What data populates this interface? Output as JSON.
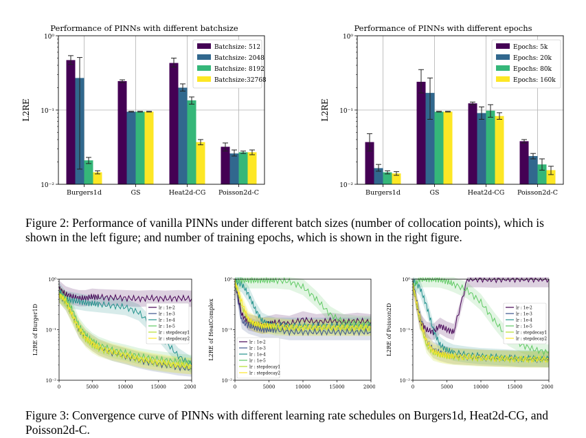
{
  "figure2": {
    "caption": "Figure 2: Performance of vanilla PINNs under different batch sizes (number of collocation points), which is shown in the left figure; and number of training epochs, which is shown in the right figure.",
    "left_chart": "batchsize",
    "right_chart": "epochs"
  },
  "figure3": {
    "caption": "Figure 3: Convergence curve of PINNs with different learning rate schedules on Burgers1d, Heat2d-CG, and Poisson2d-C."
  },
  "chart_data": [
    {
      "id": "batchsize",
      "type": "bar",
      "title": "Performance of PINNs with different batchsize",
      "xlabel": "",
      "ylabel": "L2RE",
      "yscale": "log",
      "ylim": [
        0.01,
        1
      ],
      "yticks": [
        "10⁰",
        "10⁻¹",
        "10⁻²"
      ],
      "legend_position": "top-right",
      "categories": [
        "Burgers1d",
        "GS",
        "Heat2d-CG",
        "Poisson2d-C"
      ],
      "series": [
        {
          "name": "Batchsize: 512",
          "color": "#440154",
          "values": [
            0.47,
            0.245,
            0.43,
            0.032
          ],
          "err": [
            [
              0.41,
              0.54
            ],
            [
              0.235,
              0.255
            ],
            [
              0.38,
              0.5
            ],
            [
              0.028,
              0.036
            ]
          ]
        },
        {
          "name": "Batchsize: 2048",
          "color": "#31688e",
          "values": [
            0.27,
            0.095,
            0.2,
            0.026
          ],
          "err": [
            [
              0.016,
              0.51
            ],
            [
              0.094,
              0.096
            ],
            [
              0.18,
              0.225
            ],
            [
              0.024,
              0.029
            ]
          ]
        },
        {
          "name": "Batchsize: 8192",
          "color": "#35b779",
          "values": [
            0.021,
            0.095,
            0.135,
            0.027
          ],
          "err": [
            [
              0.019,
              0.023
            ],
            [
              0.094,
              0.096
            ],
            [
              0.12,
              0.15
            ],
            [
              0.026,
              0.028
            ]
          ]
        },
        {
          "name": "Batchsize:32768",
          "color": "#fde725",
          "values": [
            0.0145,
            0.095,
            0.037,
            0.027
          ],
          "err": [
            [
              0.0138,
              0.0152
            ],
            [
              0.094,
              0.096
            ],
            [
              0.034,
              0.04
            ],
            [
              0.025,
              0.029
            ]
          ]
        }
      ]
    },
    {
      "id": "epochs",
      "type": "bar",
      "title": "Performance of PINNs with different epochs",
      "xlabel": "",
      "ylabel": "L2RE",
      "yscale": "log",
      "ylim": [
        0.01,
        1
      ],
      "yticks": [
        "10⁰",
        "10⁻¹",
        "10⁻²"
      ],
      "legend_position": "top-right",
      "categories": [
        "Burgers1d",
        "GS",
        "Heat2d-CG",
        "Poisson2d-C"
      ],
      "series": [
        {
          "name": "Epochs: 5k",
          "color": "#440154",
          "values": [
            0.037,
            0.24,
            0.123,
            0.038
          ],
          "err": [
            [
              0.028,
              0.048
            ],
            [
              0.17,
              0.35
            ],
            [
              0.118,
              0.128
            ],
            [
              0.036,
              0.04
            ]
          ]
        },
        {
          "name": "Epochs: 20k",
          "color": "#31688e",
          "values": [
            0.0165,
            0.17,
            0.091,
            0.024
          ],
          "err": [
            [
              0.015,
              0.0185
            ],
            [
              0.075,
              0.27
            ],
            [
              0.075,
              0.11
            ],
            [
              0.022,
              0.026
            ]
          ]
        },
        {
          "name": "Epochs: 80k",
          "color": "#35b779",
          "values": [
            0.0145,
            0.095,
            0.098,
            0.0185
          ],
          "err": [
            [
              0.0138,
              0.0152
            ],
            [
              0.094,
              0.096
            ],
            [
              0.08,
              0.118
            ],
            [
              0.0155,
              0.022
            ]
          ]
        },
        {
          "name": "Epochs: 160k",
          "color": "#fde725",
          "values": [
            0.014,
            0.095,
            0.083,
            0.0155
          ],
          "err": [
            [
              0.0132,
              0.0148
            ],
            [
              0.094,
              0.096
            ],
            [
              0.075,
              0.092
            ],
            [
              0.0135,
              0.0175
            ]
          ]
        }
      ]
    },
    {
      "id": "burgers",
      "type": "line",
      "title": "",
      "xlabel": "",
      "ylabel": "L2RE of Burger1D",
      "yscale": "log",
      "ylim": [
        0.01,
        1
      ],
      "xlim": [
        0,
        20000
      ],
      "xticks": [
        0,
        5000,
        10000,
        15000,
        20000
      ],
      "yticks": [
        "10⁰",
        "10⁻¹",
        "10⁻²"
      ],
      "legend_position": "center-right",
      "x": [
        0,
        1000,
        2000,
        3000,
        4000,
        5000,
        6000,
        8000,
        10000,
        12000,
        14000,
        16000,
        18000,
        20000
      ],
      "series": [
        {
          "name": "lr : 1e-2",
          "color": "#440154",
          "values": [
            0.65,
            0.5,
            0.45,
            0.42,
            0.42,
            0.45,
            0.44,
            0.43,
            0.42,
            0.41,
            0.42,
            0.41,
            0.42,
            0.41
          ]
        },
        {
          "name": "lr : 1e-3",
          "color": "#3b528b",
          "values": [
            0.5,
            0.35,
            0.2,
            0.1,
            0.07,
            0.055,
            0.045,
            0.035,
            0.03,
            0.025,
            0.022,
            0.02,
            0.018,
            0.017
          ]
        },
        {
          "name": "lr : 1e-4",
          "color": "#21918c",
          "values": [
            0.6,
            0.4,
            0.38,
            0.36,
            0.34,
            0.33,
            0.32,
            0.3,
            0.28,
            0.22,
            0.12,
            0.06,
            0.03,
            0.02
          ]
        },
        {
          "name": "lr : 1e-5",
          "color": "#5ec962",
          "values": [
            0.5,
            0.4,
            0.25,
            0.12,
            0.08,
            0.06,
            0.05,
            0.04,
            0.035,
            0.03,
            0.027,
            0.025,
            0.023,
            0.022
          ]
        },
        {
          "name": "lr : stepdecay1",
          "color": "#b5de2b",
          "values": [
            0.5,
            0.35,
            0.18,
            0.1,
            0.065,
            0.05,
            0.042,
            0.035,
            0.03,
            0.026,
            0.023,
            0.021,
            0.02,
            0.019
          ]
        },
        {
          "name": "lr : stepdecay2",
          "color": "#fde725",
          "values": [
            0.5,
            0.38,
            0.2,
            0.11,
            0.07,
            0.055,
            0.045,
            0.037,
            0.032,
            0.027,
            0.024,
            0.022,
            0.02,
            0.019
          ]
        }
      ]
    },
    {
      "id": "heat",
      "type": "line",
      "title": "",
      "xlabel": "",
      "ylabel": "L2RE of HeatComplex",
      "yscale": "log",
      "ylim": [
        0.01,
        1
      ],
      "xlim": [
        0,
        20000
      ],
      "xticks": [
        0,
        5000,
        10000,
        15000,
        20000
      ],
      "yticks": [
        "10⁰",
        "10⁻¹",
        "10⁻²"
      ],
      "legend_position": "bottom-left",
      "x": [
        0,
        1000,
        2000,
        3000,
        4000,
        5000,
        6000,
        8000,
        10000,
        12000,
        14000,
        16000,
        18000,
        20000
      ],
      "series": [
        {
          "name": "lr : 1e-2",
          "color": "#440154",
          "values": [
            0.9,
            0.2,
            0.14,
            0.13,
            0.12,
            0.13,
            0.14,
            0.13,
            0.16,
            0.14,
            0.15,
            0.14,
            0.15,
            0.14
          ]
        },
        {
          "name": "lr : 1e-3",
          "color": "#3b528b",
          "values": [
            0.9,
            0.15,
            0.12,
            0.11,
            0.1,
            0.1,
            0.1,
            0.09,
            0.09,
            0.09,
            0.09,
            0.09,
            0.09,
            0.09
          ]
        },
        {
          "name": "lr : 1e-4",
          "color": "#21918c",
          "values": [
            0.9,
            0.8,
            0.5,
            0.25,
            0.15,
            0.13,
            0.12,
            0.12,
            0.12,
            0.12,
            0.12,
            0.12,
            0.12,
            0.12
          ]
        },
        {
          "name": "lr : 1e-5",
          "color": "#5ec962",
          "values": [
            0.9,
            0.95,
            0.95,
            0.95,
            0.95,
            0.95,
            0.95,
            0.9,
            0.7,
            0.4,
            0.2,
            0.14,
            0.13,
            0.13
          ]
        },
        {
          "name": "lr : stepdecay1",
          "color": "#b5de2b",
          "values": [
            0.9,
            0.3,
            0.15,
            0.13,
            0.12,
            0.12,
            0.11,
            0.11,
            0.11,
            0.11,
            0.11,
            0.11,
            0.11,
            0.11
          ]
        },
        {
          "name": "lr : stepdecay2",
          "color": "#fde725",
          "values": [
            0.9,
            0.35,
            0.16,
            0.13,
            0.12,
            0.12,
            0.12,
            0.11,
            0.11,
            0.11,
            0.11,
            0.11,
            0.11,
            0.11
          ]
        }
      ]
    },
    {
      "id": "poisson",
      "type": "line",
      "title": "",
      "xlabel": "",
      "ylabel": "L2RE of Poisson2D",
      "yscale": "log",
      "ylim": [
        0.01,
        1
      ],
      "xlim": [
        0,
        20000
      ],
      "xticks": [
        0,
        5000,
        10000,
        15000,
        20000
      ],
      "yticks": [
        "10⁰",
        "10⁻¹",
        "10⁻²"
      ],
      "legend_position": "center-right",
      "x": [
        0,
        1000,
        2000,
        3000,
        4000,
        5000,
        6000,
        8000,
        10000,
        12000,
        14000,
        16000,
        18000,
        20000
      ],
      "series": [
        {
          "name": "lr : 1e-2",
          "color": "#440154",
          "values": [
            0.8,
            0.15,
            0.1,
            0.09,
            0.12,
            0.1,
            0.09,
            1.0,
            1.0,
            0.98,
            1.0,
            1.0,
            1.0,
            1.0
          ]
        },
        {
          "name": "lr : 1e-3",
          "color": "#3b528b",
          "values": [
            0.9,
            0.2,
            0.06,
            0.04,
            0.035,
            0.032,
            0.03,
            0.029,
            0.028,
            0.027,
            0.027,
            0.026,
            0.026,
            0.026
          ]
        },
        {
          "name": "lr : 1e-4",
          "color": "#21918c",
          "values": [
            0.95,
            0.7,
            0.3,
            0.1,
            0.05,
            0.04,
            0.035,
            0.032,
            0.03,
            0.029,
            0.028,
            0.027,
            0.027,
            0.026
          ]
        },
        {
          "name": "lr : 1e-5",
          "color": "#5ec962",
          "values": [
            0.7,
            1.0,
            1.0,
            1.0,
            0.98,
            0.9,
            0.8,
            0.6,
            0.35,
            0.15,
            0.07,
            0.05,
            0.04,
            0.035
          ]
        },
        {
          "name": "lr : stepdecay1",
          "color": "#b5de2b",
          "values": [
            0.8,
            0.15,
            0.05,
            0.035,
            0.032,
            0.03,
            0.029,
            0.028,
            0.027,
            0.027,
            0.026,
            0.026,
            0.026,
            0.026
          ]
        },
        {
          "name": "lr : stepdecay2",
          "color": "#fde725",
          "values": [
            0.8,
            0.18,
            0.06,
            0.038,
            0.033,
            0.031,
            0.03,
            0.029,
            0.028,
            0.027,
            0.027,
            0.026,
            0.026,
            0.026
          ]
        }
      ]
    }
  ]
}
